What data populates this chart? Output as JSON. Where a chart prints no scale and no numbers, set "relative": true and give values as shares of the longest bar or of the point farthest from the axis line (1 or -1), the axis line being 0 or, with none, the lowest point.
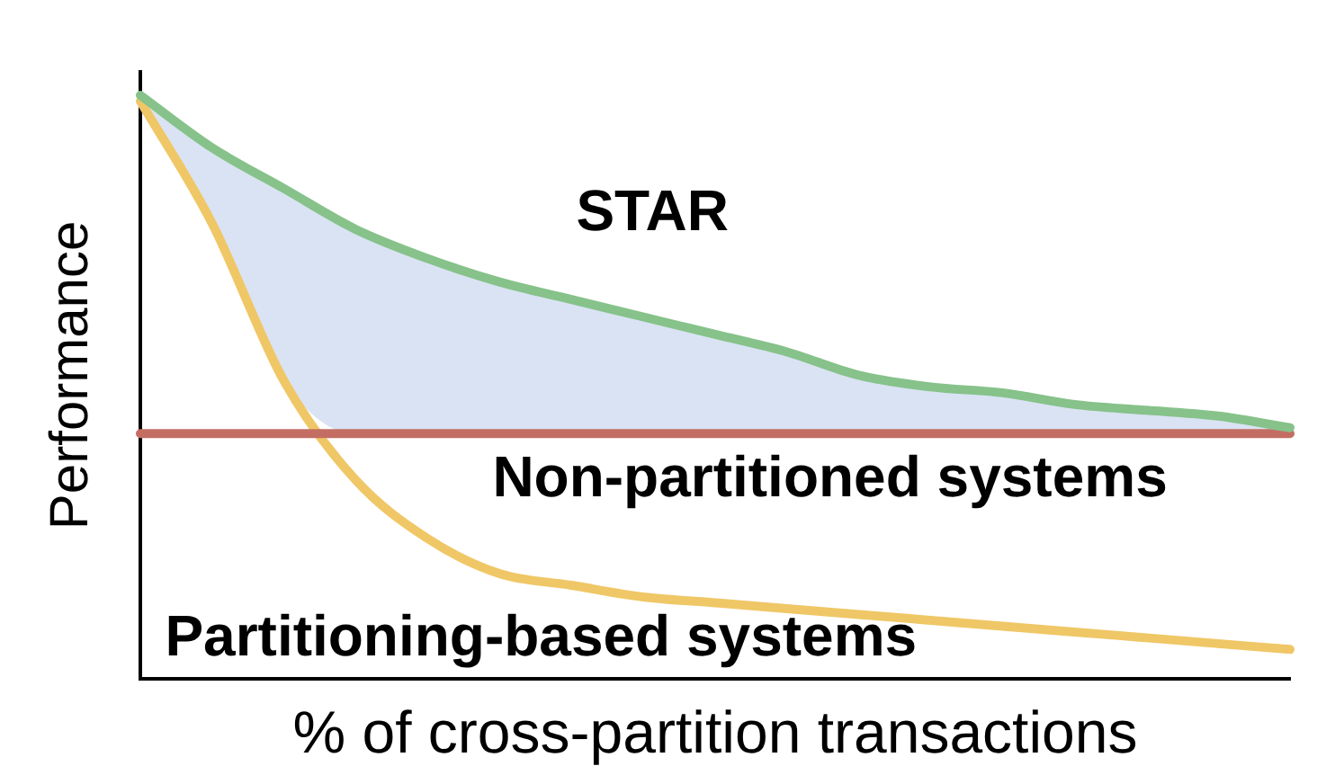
{
  "chart_data": {
    "type": "line",
    "xlabel": "% of cross-partition transactions",
    "ylabel": "Performance",
    "relative": true,
    "tick_labels": false,
    "categories": [
      null,
      null,
      null,
      null,
      null,
      null,
      null,
      null,
      null,
      null,
      null,
      null,
      null,
      null,
      null,
      null,
      null
    ],
    "series": [
      {
        "name": "STAR",
        "color": "#86c28a",
        "values": [
          1,
          0.91,
          0.84,
          0.77,
          0.72,
          0.68,
          0.65,
          0.62,
          0.59,
          0.56,
          0.52,
          0.5,
          0.49,
          0.47,
          0.46,
          0.45,
          0.43
        ],
        "lower": [
          0.99,
          0.78,
          0.51,
          0.42,
          0.42,
          0.42,
          0.42,
          0.42,
          0.42,
          0.42,
          0.42,
          0.42,
          0.42,
          0.42,
          0.42,
          0.42,
          0.42
        ],
        "upper": [
          1,
          0.91,
          0.84,
          0.77,
          0.72,
          0.68,
          0.65,
          0.62,
          0.59,
          0.56,
          0.52,
          0.5,
          0.49,
          0.47,
          0.46,
          0.45,
          0.43
        ]
      },
      {
        "name": "Non-partitioned systems",
        "color": "#c46e63",
        "values": [
          0.42,
          0.42,
          0.42,
          0.42,
          0.42,
          0.42,
          0.42,
          0.42,
          0.42,
          0.42,
          0.42,
          0.42,
          0.42,
          0.42,
          0.42,
          0.42,
          0.42
        ]
      },
      {
        "name": "Partitioning-based systems",
        "color": "#f0c766",
        "values": [
          0.99,
          0.78,
          0.51,
          0.34,
          0.24,
          0.18,
          0.16,
          0.14,
          0.13,
          0.12,
          0.11,
          0.1,
          0.09,
          0.08,
          0.07,
          0.06,
          0.05
        ]
      }
    ]
  }
}
